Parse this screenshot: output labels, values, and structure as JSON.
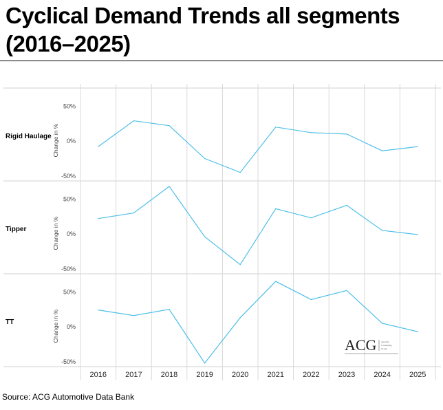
{
  "title": "Cyclical Demand Trends all segments (2016–2025)",
  "source": "Source: ACG Automotive Data Bank",
  "logo": {
    "mark": "ACG",
    "subtitle": "Autobei Consulting Group"
  },
  "chart_data": {
    "type": "line",
    "categories": [
      "2016",
      "2017",
      "2018",
      "2019",
      "2020",
      "2021",
      "2022",
      "2023",
      "2024",
      "2025"
    ],
    "ylabel": "Change in %",
    "yticks": [
      "50%",
      "0%",
      "-50%"
    ],
    "ylim": [
      -50,
      50
    ],
    "grid": true,
    "line_color": "#4dbfe8",
    "series": [
      {
        "name": "Rigid Haulage",
        "values": [
          -9,
          28,
          21,
          -26,
          -46,
          19,
          11,
          9,
          -15,
          -9
        ]
      },
      {
        "name": "Tipper",
        "values": [
          21,
          29,
          67,
          -5,
          -45,
          35,
          22,
          40,
          4,
          -2
        ]
      },
      {
        "name": "TT",
        "values": [
          23,
          15,
          24,
          -53,
          12,
          64,
          38,
          51,
          4,
          -8
        ]
      }
    ]
  }
}
